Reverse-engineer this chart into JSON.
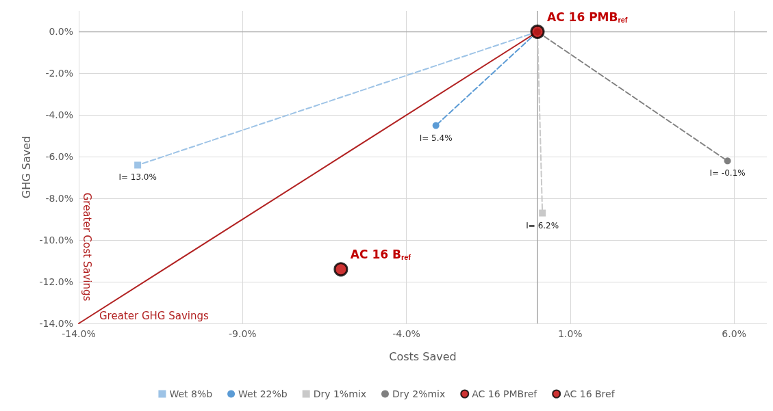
{
  "chart_data": {
    "type": "line",
    "xlabel": "Costs Saved",
    "ylabel": "GHG Saved",
    "xlim": [
      -14,
      7
    ],
    "ylim": [
      -14,
      1
    ],
    "xticks": [
      {
        "value": -14,
        "label": "-14.0%"
      },
      {
        "value": -9,
        "label": "-9.0%"
      },
      {
        "value": -4,
        "label": "-4.0%"
      },
      {
        "value": 1,
        "label": "1.0%"
      },
      {
        "value": 6,
        "label": "6.0%"
      }
    ],
    "yticks": [
      {
        "value": -14,
        "label": "-14.0%"
      },
      {
        "value": -12,
        "label": "-12.0%"
      },
      {
        "value": -10,
        "label": "-10.0%"
      },
      {
        "value": -8,
        "label": "-8.0%"
      },
      {
        "value": -6,
        "label": "-6.0%"
      },
      {
        "value": -4,
        "label": "-4.0%"
      },
      {
        "value": -2,
        "label": "-2.0%"
      },
      {
        "value": 0,
        "label": "0.0%"
      }
    ],
    "grid": true,
    "legend": "bottom",
    "series": [
      {
        "name": "Wet 8%b",
        "color": "#9dc3e6",
        "marker": "square",
        "line_style": "dashed",
        "x": [
          0,
          -12.2
        ],
        "values": [
          0,
          -6.4
        ]
      },
      {
        "name": "Wet 22%b",
        "color": "#5b9bd5",
        "marker": "circle",
        "line_style": "dashed",
        "x": [
          0,
          -3.1
        ],
        "values": [
          0,
          -4.5
        ]
      },
      {
        "name": "Dry 1%mix",
        "color": "#c9c9c9",
        "marker": "square",
        "line_style": "dashed",
        "x": [
          0,
          0.15
        ],
        "values": [
          0,
          -8.7
        ]
      },
      {
        "name": "Dry 2%mix",
        "color": "#7f7f7f",
        "marker": "circle",
        "line_style": "dashed",
        "x": [
          0,
          5.8
        ],
        "values": [
          0,
          -6.2
        ]
      },
      {
        "name": "AC 16 PMBref",
        "type": "scatter",
        "color": "#c00000",
        "marker": "circle",
        "x": [
          0
        ],
        "values": [
          0
        ]
      },
      {
        "name": "AC 16 Bref",
        "type": "scatter",
        "color": "#c00000",
        "marker": "circle",
        "x": [
          -6.0
        ],
        "values": [
          -11.4
        ]
      },
      {
        "color": "#b22222",
        "marker": "none",
        "line_style": "solid",
        "x": [
          -14,
          0
        ],
        "values": [
          -14,
          0
        ]
      }
    ],
    "ref_lines": [
      {
        "axis": "x",
        "value": 0,
        "color": "#a6a6a6"
      },
      {
        "axis": "y",
        "value": 0,
        "color": "#b0b0b0"
      }
    ],
    "annotations": [
      {
        "text": "I= 13.0%",
        "x": -12.2,
        "y": -6.4
      },
      {
        "text": "I= 5.4%",
        "x": -3.1,
        "y": -4.5
      },
      {
        "text": "I= 6.2%",
        "x": 0.15,
        "y": -8.7
      },
      {
        "text": "I= -0.1%",
        "x": 5.8,
        "y": -6.2
      },
      {
        "text": "AC 16 PMB$_{ref}$",
        "x": 0,
        "y": 0
      },
      {
        "text": "AC 16 B$_{ref}$",
        "x": -6.0,
        "y": -11.4
      },
      "Greater Cost Savings",
      "Greater GHG Savings"
    ]
  }
}
